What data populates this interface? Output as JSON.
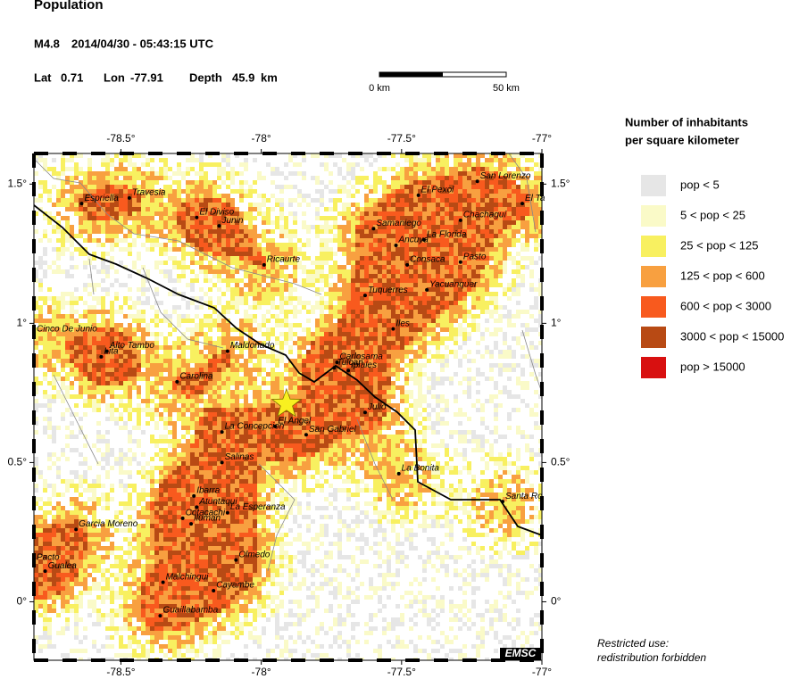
{
  "header": {
    "title": "Population",
    "magnitude": "M4.8",
    "datetime": "2014/04/30 - 05:43:15 UTC",
    "lat_label": "Lat",
    "lat": 0.71,
    "lon_label": "Lon",
    "lon": -77.91,
    "depth_label": "Depth",
    "depth": 45.9,
    "depth_unit": "km"
  },
  "scale_bar": {
    "start": "0 km",
    "end": "50 km"
  },
  "map": {
    "xlim": [
      -78.81,
      -77.0
    ],
    "ylim": [
      -0.21,
      1.61
    ],
    "xticks": [
      {
        "value": -78.5,
        "label": "-78.5°"
      },
      {
        "value": -78,
        "label": "-78°"
      },
      {
        "value": -77.5,
        "label": "-77.5°"
      },
      {
        "value": -77,
        "label": "-77°"
      }
    ],
    "yticks": [
      {
        "value": 1.5,
        "label": "1.5°"
      },
      {
        "value": 1,
        "label": "1°"
      },
      {
        "value": 0.5,
        "label": "0.5°"
      },
      {
        "value": 0,
        "label": "0°"
      }
    ],
    "towns": [
      {
        "name": "Espriella",
        "lon": -78.64,
        "lat": 1.43
      },
      {
        "name": "Travesia",
        "lon": -78.47,
        "lat": 1.45
      },
      {
        "name": "El Diviso",
        "lon": -78.23,
        "lat": 1.38
      },
      {
        "name": "Junin",
        "lon": -78.15,
        "lat": 1.35
      },
      {
        "name": "Ricaurte",
        "lon": -77.99,
        "lat": 1.21
      },
      {
        "name": "El Pexol",
        "lon": -77.44,
        "lat": 1.46
      },
      {
        "name": "San Lorenzo",
        "lon": -77.23,
        "lat": 1.51
      },
      {
        "name": "El Ta",
        "lon": -77.07,
        "lat": 1.43
      },
      {
        "name": "Chachaguí",
        "lon": -77.29,
        "lat": 1.37
      },
      {
        "name": "Samaniego",
        "lon": -77.6,
        "lat": 1.34
      },
      {
        "name": "La Florida",
        "lon": -77.42,
        "lat": 1.3
      },
      {
        "name": "Ancuya",
        "lon": -77.52,
        "lat": 1.28
      },
      {
        "name": "Consaca",
        "lon": -77.48,
        "lat": 1.21
      },
      {
        "name": "Pasto",
        "lon": -77.29,
        "lat": 1.22
      },
      {
        "name": "Yacuanquer",
        "lon": -77.41,
        "lat": 1.12
      },
      {
        "name": "Tuquerres",
        "lon": -77.63,
        "lat": 1.1
      },
      {
        "name": "Iles",
        "lon": -77.53,
        "lat": 0.98
      },
      {
        "name": "Cinco De Junio",
        "lon": -78.81,
        "lat": 0.96
      },
      {
        "name": "Alto Tambo",
        "lon": -78.55,
        "lat": 0.9
      },
      {
        "name": "Lita",
        "lon": -78.57,
        "lat": 0.88
      },
      {
        "name": "Maldonado",
        "lon": -78.12,
        "lat": 0.9
      },
      {
        "name": "Carlosama",
        "lon": -77.73,
        "lat": 0.86
      },
      {
        "name": "Tulcan",
        "lon": -77.74,
        "lat": 0.84
      },
      {
        "name": "Ipiales",
        "lon": -77.69,
        "lat": 0.83
      },
      {
        "name": "Carolina",
        "lon": -78.3,
        "lat": 0.79
      },
      {
        "name": "Julio",
        "lon": -77.63,
        "lat": 0.68
      },
      {
        "name": "El Angel",
        "lon": -77.95,
        "lat": 0.63
      },
      {
        "name": "La Concepcion",
        "lon": -78.14,
        "lat": 0.61
      },
      {
        "name": "San Gabriel",
        "lon": -77.84,
        "lat": 0.6
      },
      {
        "name": "Salinas",
        "lon": -78.14,
        "lat": 0.5
      },
      {
        "name": "La Bonita",
        "lon": -77.51,
        "lat": 0.46
      },
      {
        "name": "Santa Ro",
        "lon": -77.14,
        "lat": 0.36
      },
      {
        "name": "Ibarra",
        "lon": -78.24,
        "lat": 0.38
      },
      {
        "name": "Atuntaqui",
        "lon": -78.23,
        "lat": 0.34
      },
      {
        "name": "Cotacachi",
        "lon": -78.28,
        "lat": 0.3
      },
      {
        "name": "La Esperanza",
        "lon": -78.12,
        "lat": 0.32
      },
      {
        "name": "Iluman",
        "lon": -78.25,
        "lat": 0.28
      },
      {
        "name": "Garcia Moreno",
        "lon": -78.66,
        "lat": 0.26
      },
      {
        "name": "Olmedo",
        "lon": -78.09,
        "lat": 0.15
      },
      {
        "name": "Pacto",
        "lon": -78.81,
        "lat": 0.14
      },
      {
        "name": "Gualea",
        "lon": -78.77,
        "lat": 0.11
      },
      {
        "name": "Malchingui",
        "lon": -78.35,
        "lat": 0.07
      },
      {
        "name": "Cayambe",
        "lon": -78.17,
        "lat": 0.04
      },
      {
        "name": "Guaillabamba",
        "lon": -78.36,
        "lat": -0.05
      }
    ]
  },
  "legend": {
    "title_lines": [
      "Number of inhabitants",
      "per square kilometer"
    ],
    "items": [
      {
        "label": "pop < 5",
        "color": "#e6e6e6"
      },
      {
        "label": "5 < pop < 25",
        "color": "#fafac8"
      },
      {
        "label": "25 < pop < 125",
        "color": "#f8f060"
      },
      {
        "label": "125 < pop < 600",
        "color": "#f8a040"
      },
      {
        "label": "600 < pop < 3000",
        "color": "#f85a1e"
      },
      {
        "label": "3000 < pop < 15000",
        "color": "#b84a14"
      },
      {
        "label": "pop > 15000",
        "color": "#d81010"
      }
    ]
  },
  "footer": {
    "lines": [
      "Restricted use:",
      "redistribution forbidden"
    ],
    "logo": "EMSC"
  }
}
